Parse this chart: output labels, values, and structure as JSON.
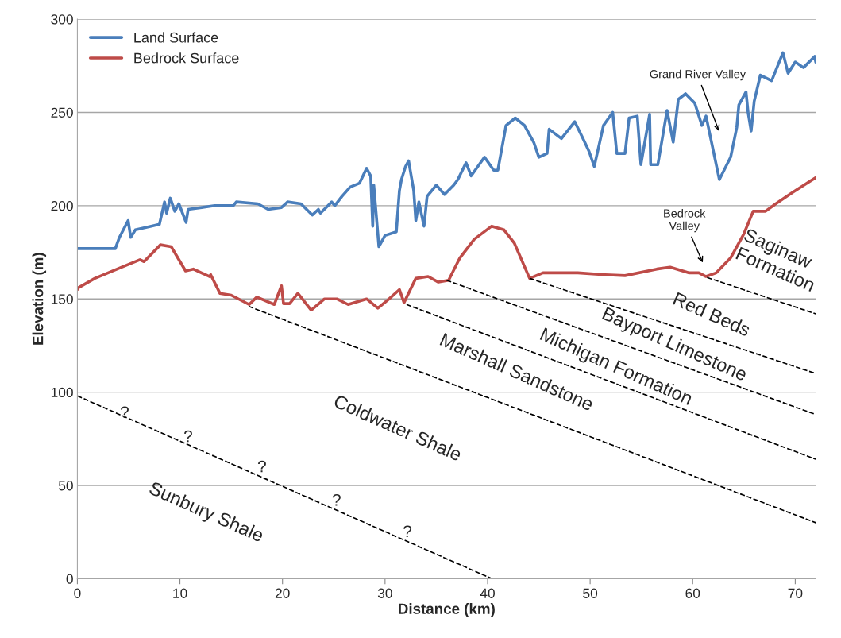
{
  "chart_data": {
    "type": "line",
    "xlabel": "Distance (km)",
    "ylabel": "Elevation (m)",
    "xlim": [
      0,
      72
    ],
    "ylim": [
      0,
      300
    ],
    "xticks": [
      0,
      10,
      20,
      30,
      40,
      50,
      60,
      70
    ],
    "yticks": [
      0,
      50,
      100,
      150,
      200,
      250,
      300
    ],
    "grid": "y",
    "legend": "top left",
    "series": [
      {
        "name": "Land Surface",
        "color": "#4a7ebb",
        "x": [
          0,
          3.7,
          4.1,
          4.95,
          5.2,
          5.65,
          7.2,
          8.0,
          8.5,
          8.7,
          9.06,
          9.5,
          9.9,
          10.6,
          10.8,
          13.4,
          15.2,
          15.5,
          17.6,
          18.6,
          19.9,
          20.5,
          21.8,
          22.9,
          23.5,
          23.7,
          24.8,
          25.1,
          25.8,
          26.6,
          27.5,
          28.2,
          28.6,
          28.8,
          28.9,
          29.4,
          30.0,
          31.1,
          31.4,
          31.6,
          32.0,
          32.3,
          32.8,
          33.0,
          33.3,
          33.8,
          34.1,
          35.0,
          35.8,
          36.7,
          37.1,
          37.9,
          38.4,
          39.7,
          40.6,
          41.0,
          41.8,
          42.7,
          43.6,
          44.5,
          45.0,
          45.8,
          46.0,
          47.2,
          48.5,
          49.3,
          49.9,
          50.4,
          51.3,
          52.2,
          52.6,
          53.4,
          53.8,
          54.6,
          54.95,
          55.8,
          55.9,
          56.6,
          57.5,
          58.1,
          58.6,
          59.3,
          60.2,
          60.9,
          61.3,
          62.6,
          63.7,
          64.3,
          64.5,
          65.2,
          65.4,
          65.7,
          66.0,
          66.6,
          67.7,
          68.8,
          69.3,
          70.0,
          70.8,
          71.9,
          72
        ],
        "values": [
          177,
          177,
          183,
          192,
          183,
          187,
          189,
          190,
          202,
          196,
          204,
          197,
          201,
          191,
          198,
          200,
          200,
          202,
          201,
          198,
          199,
          202,
          201,
          195,
          198,
          196,
          202,
          200,
          205,
          210,
          212,
          220,
          216,
          189,
          211,
          178,
          184,
          186,
          208,
          214,
          221,
          224,
          208,
          192,
          202,
          189,
          205,
          211,
          206,
          211,
          214,
          223,
          216,
          226,
          219,
          219,
          243,
          247,
          243,
          234,
          226,
          228,
          241,
          236,
          245,
          236,
          229,
          221,
          243,
          250,
          228,
          228,
          247,
          248,
          222,
          249,
          222,
          222,
          251,
          234,
          257,
          260,
          255,
          243,
          248,
          214,
          226,
          242,
          254,
          261,
          250,
          240,
          256,
          270,
          267,
          282,
          271,
          277,
          274,
          280,
          277
        ]
      },
      {
        "name": "Bedrock Surface",
        "color": "#be4b48",
        "x": [
          0,
          0.1,
          1.7,
          4.3,
          6.1,
          6.5,
          8.1,
          9.15,
          10.55,
          11.3,
          12.9,
          13.0,
          13.9,
          15.0,
          16.75,
          17.5,
          19.2,
          19.9,
          20.1,
          20.7,
          21.5,
          22.8,
          24.1,
          25.3,
          26.4,
          28.2,
          29.3,
          30.4,
          31.4,
          31.85,
          33.0,
          34.2,
          35.2,
          36.2,
          37.3,
          38.7,
          40.4,
          41.6,
          42.6,
          44.1,
          45.4,
          48.8,
          51.4,
          53.4,
          56.5,
          57.8,
          59.6,
          60.6,
          61.3,
          62.3,
          63.7,
          65.0,
          65.9,
          67.1,
          68.1,
          69.7,
          72.0
        ],
        "values": [
          155,
          156,
          161,
          167,
          171,
          170,
          179,
          178,
          165,
          166,
          162,
          163,
          153,
          152,
          147,
          151,
          147,
          157,
          147.5,
          147.5,
          153,
          144,
          150,
          150,
          147,
          150,
          145,
          150,
          155,
          148,
          161,
          162,
          159,
          160,
          172,
          182,
          189,
          187,
          180,
          161,
          164,
          164,
          163,
          162.5,
          166,
          167,
          164,
          164,
          162,
          164,
          172,
          185,
          197,
          197,
          201,
          207,
          215
        ]
      },
      {
        "color": "#000000",
        "line_style": "dashed",
        "x": [
          0,
          40.4
        ],
        "values": [
          98,
          0
        ]
      },
      {
        "color": "#000000",
        "line_style": "dashed",
        "x": [
          16.7,
          72
        ],
        "values": [
          146,
          30
        ]
      },
      {
        "color": "#000000",
        "line_style": "dashed",
        "x": [
          32.1,
          72
        ],
        "values": [
          147,
          64
        ]
      },
      {
        "color": "#000000",
        "line_style": "dashed",
        "x": [
          36.0,
          72
        ],
        "values": [
          160,
          88
        ]
      },
      {
        "color": "#000000",
        "line_style": "dashed",
        "x": [
          44.1,
          72
        ],
        "values": [
          161,
          110
        ]
      },
      {
        "color": "#000000",
        "line_style": "dashed",
        "x": [
          61.4,
          72
        ],
        "values": [
          161.5,
          142
        ]
      }
    ],
    "annotations": [
      "Grand River Valley",
      "Bedrock\nValley",
      "?",
      "?",
      "?",
      "?",
      "?",
      "Sunbury Shale",
      "Coldwater Shale",
      "Marshall Sandstone",
      "Michigan Formation",
      "Bayport Limestone",
      "Red Beds",
      "Saginaw\nFormation"
    ]
  }
}
